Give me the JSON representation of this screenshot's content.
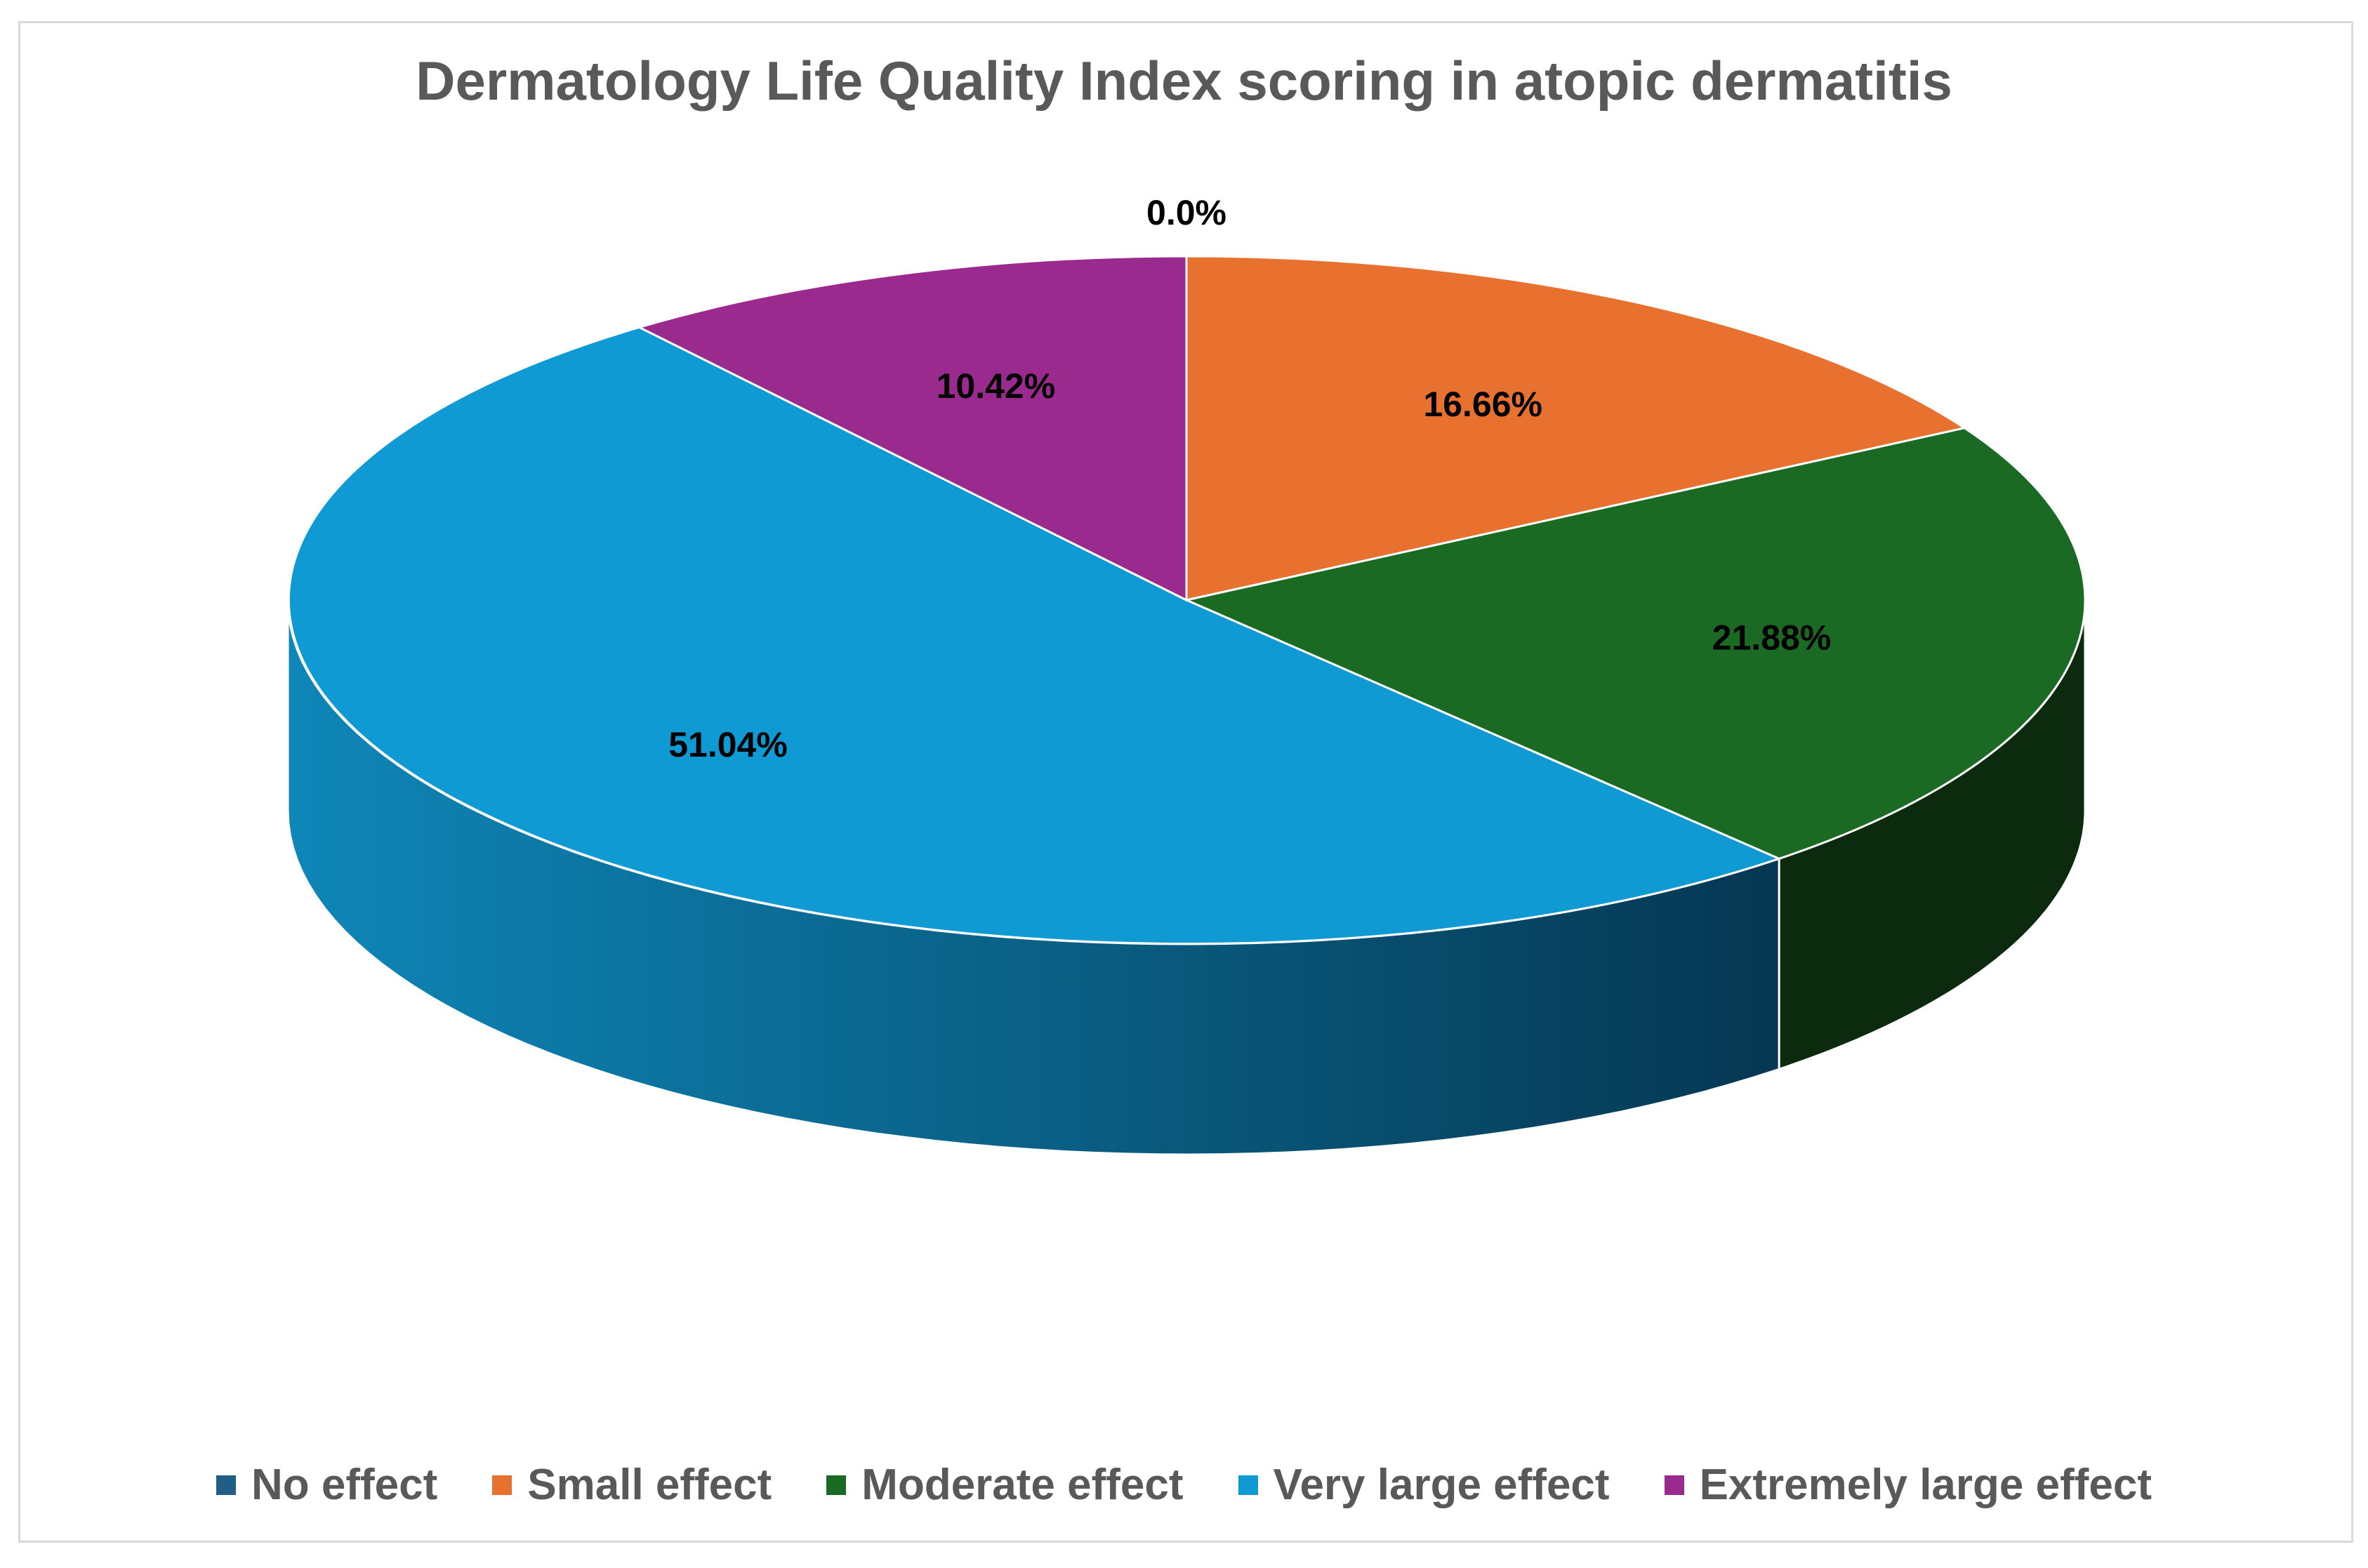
{
  "chart_data": {
    "type": "pie",
    "variant": "3d",
    "title": "Dermatology Life Quality Index scoring in atopic dermatitis",
    "categories": [
      "No effect",
      "Small effect",
      "Moderate effect",
      "Very large effect",
      "Extremely large effect"
    ],
    "values": [
      0.0,
      16.66,
      21.88,
      51.04,
      10.42
    ],
    "data_labels": [
      "0.0%",
      "16.66%",
      "21.88%",
      "51.04%",
      "10.42%"
    ],
    "colors": [
      "#1f5f85",
      "#e87130",
      "#1a6a24",
      "#0f9ad4",
      "#9b2a8f"
    ],
    "side_colors": [
      "#123a52",
      "#8a4017",
      "#0b2a0e",
      "#0d6d97",
      "#5e1656"
    ],
    "legend_position": "bottom"
  }
}
